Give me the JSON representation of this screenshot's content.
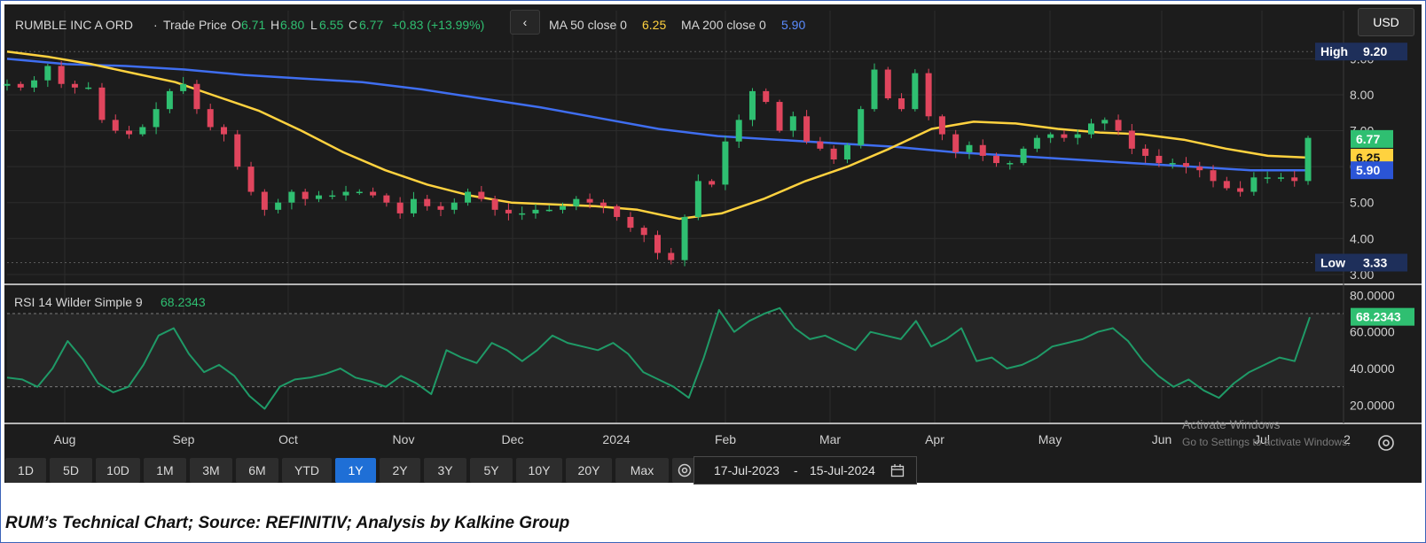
{
  "header": {
    "instrument": "RUMBLE INC A ORD",
    "sep": "·",
    "price_type": "Trade Price",
    "o_label": "O",
    "o_val": "6.71",
    "h_label": "H",
    "h_val": "6.80",
    "l_label": "L",
    "l_val": "6.55",
    "c_label": "C",
    "c_val": "6.77",
    "change": "+0.83 (+13.99%)",
    "back_label": "‹",
    "ma50_label": "MA 50 close 0",
    "ma50_val": "6.25",
    "ma200_label": "MA 200 close 0",
    "ma200_val": "5.90"
  },
  "currency": "USD",
  "colors": {
    "up": "#2fbf71",
    "down": "#e0455d",
    "ma50": "#ffd23f",
    "ma200": "#3f6ef0",
    "rsi": "#1f9a67",
    "background": "#1c1c1c",
    "active_tab": "#1f6fd6"
  },
  "price_badges": {
    "high_label": "High",
    "high_val": "9.20",
    "low_label": "Low",
    "low_val": "3.33",
    "last": "6.77",
    "ma50": "6.25",
    "ma200": "5.90"
  },
  "rsi": {
    "label": "RSI 14 Wilder Simple 9",
    "value": "68.2343",
    "badge": "68.2343"
  },
  "chart_data": [
    {
      "type": "candlestick",
      "title": "RUMBLE INC A ORD · Trade Price",
      "x_ticks": [
        "Aug",
        "Sep",
        "Oct",
        "Nov",
        "Dec",
        "2024",
        "Feb",
        "Mar",
        "Apr",
        "May",
        "Jun",
        "Jul",
        "2"
      ],
      "y_ticks": [
        "3.00",
        "4.00",
        "5.00",
        "6.00",
        "7.00",
        "8.00",
        "9.00"
      ],
      "ylim": [
        2.8,
        9.6
      ],
      "grid": true,
      "series": [
        {
          "name": "Trade Price",
          "close_path": [
            8.3,
            8.2,
            8.4,
            8.8,
            8.3,
            8.2,
            8.2,
            7.3,
            7.0,
            6.9,
            7.1,
            7.6,
            8.1,
            8.3,
            7.6,
            7.1,
            6.9,
            6.0,
            5.3,
            4.8,
            5.0,
            5.3,
            5.1,
            5.2,
            5.2,
            5.3,
            5.3,
            5.2,
            5.0,
            4.7,
            5.1,
            4.9,
            4.8,
            5.0,
            5.3,
            5.1,
            4.8,
            4.7,
            4.7,
            4.8,
            4.8,
            4.9,
            5.1,
            5.0,
            4.9,
            4.6,
            4.3,
            4.1,
            3.6,
            3.4,
            4.6,
            5.6,
            5.5,
            6.7,
            7.3,
            8.1,
            7.8,
            7.0,
            7.4,
            6.7,
            6.5,
            6.2,
            6.6,
            7.6,
            8.7,
            7.9,
            7.6,
            8.6,
            7.4,
            6.9,
            6.4,
            6.6,
            6.3,
            6.1,
            6.1,
            6.5,
            6.8,
            6.9,
            6.8,
            6.9,
            7.2,
            7.3,
            7.0,
            6.5,
            6.3,
            6.1,
            6.1,
            6.0,
            5.9,
            5.6,
            5.4,
            5.3,
            5.7,
            5.7,
            5.7,
            5.6,
            6.8
          ]
        },
        {
          "name": "MA 50 close 0",
          "values": [
            9.2,
            9.05,
            8.85,
            8.6,
            8.35,
            7.95,
            7.55,
            7.0,
            6.4,
            5.9,
            5.5,
            5.2,
            5.0,
            4.95,
            4.9,
            4.8,
            4.55,
            4.7,
            5.1,
            5.6,
            6.0,
            6.5,
            7.05,
            7.25,
            7.2,
            7.05,
            6.95,
            6.9,
            6.75,
            6.5,
            6.3,
            6.25
          ]
        },
        {
          "name": "MA 200 close 0",
          "values": [
            9.0,
            8.85,
            8.8,
            8.7,
            8.55,
            8.45,
            8.35,
            8.15,
            7.9,
            7.65,
            7.35,
            7.05,
            6.85,
            6.75,
            6.65,
            6.55,
            6.4,
            6.3,
            6.2,
            6.1,
            6.0,
            5.9,
            5.9
          ]
        }
      ]
    },
    {
      "type": "line",
      "title": "RSI 14 Wilder Simple 9",
      "y_ticks": [
        "20.0000",
        "40.0000",
        "60.0000",
        "80.0000"
      ],
      "ylim": [
        10,
        85
      ],
      "reference_lines": [
        30,
        70
      ],
      "series": [
        {
          "name": "RSI 14 Wilder Simple 9",
          "values": [
            35,
            34,
            30,
            40,
            55,
            45,
            32,
            27,
            30,
            42,
            58,
            62,
            48,
            38,
            42,
            36,
            25,
            18,
            30,
            34,
            35,
            37,
            40,
            35,
            33,
            30,
            36,
            32,
            26,
            50,
            46,
            43,
            54,
            50,
            44,
            50,
            58,
            54,
            52,
            50,
            54,
            48,
            38,
            34,
            30,
            24,
            46,
            72,
            60,
            66,
            70,
            73,
            62,
            56,
            58,
            54,
            50,
            60,
            58,
            56,
            66,
            52,
            56,
            62,
            44,
            46,
            40,
            42,
            46,
            52,
            54,
            56,
            60,
            62,
            55,
            44,
            36,
            30,
            34,
            28,
            24,
            32,
            38,
            42,
            46,
            44,
            68
          ]
        }
      ]
    }
  ],
  "x_axis": [
    "Aug",
    "Sep",
    "Oct",
    "Nov",
    "Dec",
    "2024",
    "Feb",
    "Mar",
    "Apr",
    "May",
    "Jun",
    "Jul",
    "2"
  ],
  "timeframes": [
    "1D",
    "5D",
    "10D",
    "1M",
    "3M",
    "6M",
    "YTD",
    "1Y",
    "2Y",
    "3Y",
    "5Y",
    "10Y",
    "20Y",
    "Max"
  ],
  "active_timeframe": "1Y",
  "date_range": {
    "start": "17-Jul-2023",
    "dash": "-",
    "end": "15-Jul-2024"
  },
  "watermark": {
    "line1": "Activate Windows",
    "line2": "Go to Settings to activate Windows."
  },
  "caption": "RUM’s Technical Chart; Source: REFINITIV; Analysis by Kalkine Group"
}
